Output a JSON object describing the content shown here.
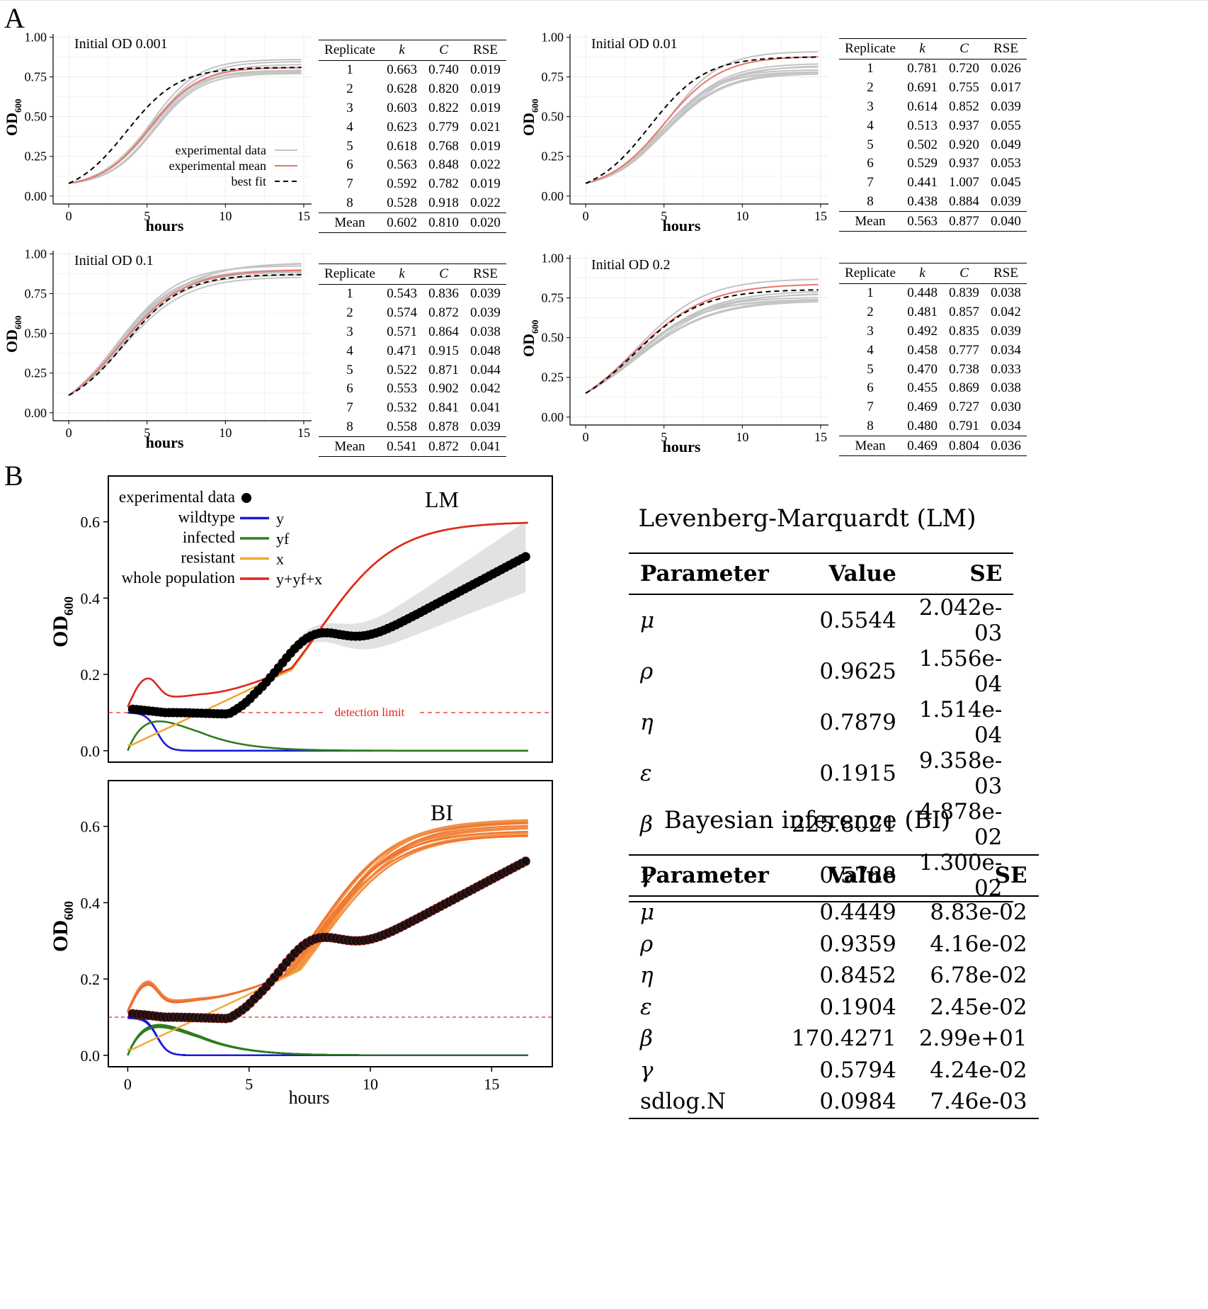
{
  "panel_a_label": "A",
  "panel_b_label": "B",
  "chart_data": [
    {
      "type": "line",
      "id": "a1",
      "title": "Initial OD 0.001",
      "xlabel": "hours",
      "ylabel": "OD",
      "ylabel_sub": "600",
      "xlim": [
        -1,
        15.5
      ],
      "ylim": [
        -0.05,
        1.02
      ],
      "xticks": [
        0,
        5,
        10,
        15
      ],
      "yticks": [
        "0.00",
        "0.25",
        "0.50",
        "0.75",
        "1.00"
      ],
      "grid": true,
      "legend_position": "bottom-right",
      "legend": [
        {
          "label": "experimental data",
          "style": "gray"
        },
        {
          "label": "experimental mean",
          "style": "red"
        },
        {
          "label": "best fit",
          "style": "dashed"
        }
      ],
      "model": {
        "N0": 0.08,
        "lag": 2.5,
        "mid": 5.2,
        "rate": 0.65,
        "C": 0.81
      },
      "fit": {
        "N0": 0.08,
        "k": 0.602,
        "C": 0.81
      },
      "spread": 0.06
    },
    {
      "type": "line",
      "id": "a2",
      "title": "Initial OD 0.01",
      "xlabel": "hours",
      "ylabel": "OD",
      "ylabel_sub": "600",
      "xlim": [
        -1,
        15.5
      ],
      "ylim": [
        -0.05,
        1.02
      ],
      "xticks": [
        0,
        5,
        10,
        15
      ],
      "yticks": [
        "0.00",
        "0.25",
        "0.50",
        "0.75",
        "1.00"
      ],
      "grid": true,
      "model": {
        "N0": 0.08,
        "lag": 2.2,
        "mid": 5.0,
        "rate": 0.55,
        "C": 0.88
      },
      "fit": {
        "N0": 0.08,
        "k": 0.563,
        "C": 0.877
      },
      "spread": 0.12
    },
    {
      "type": "line",
      "id": "a3",
      "title": "Initial OD 0.1",
      "xlabel": "hours",
      "ylabel": "OD",
      "ylabel_sub": "600",
      "xlim": [
        -1,
        15.5
      ],
      "ylim": [
        -0.05,
        1.02
      ],
      "xticks": [
        0,
        5,
        10,
        15
      ],
      "yticks": [
        "0.00",
        "0.25",
        "0.50",
        "0.75",
        "1.00"
      ],
      "grid": true,
      "model": {
        "N0": 0.11,
        "lag": 0.6,
        "mid": 3.2,
        "rate": 0.48,
        "C": 0.9
      },
      "fit": {
        "N0": 0.11,
        "k": 0.541,
        "C": 0.872
      },
      "spread": 0.05
    },
    {
      "type": "line",
      "id": "a4",
      "title": "Initial OD 0.2",
      "xlabel": "hours",
      "ylabel": "OD",
      "ylabel_sub": "600",
      "xlim": [
        -1,
        15.5
      ],
      "ylim": [
        -0.05,
        1.02
      ],
      "xticks": [
        0,
        5,
        10,
        15
      ],
      "yticks": [
        "0.00",
        "0.25",
        "0.50",
        "0.75",
        "1.00"
      ],
      "grid": true,
      "model": {
        "N0": 0.15,
        "lag": 0.3,
        "mid": 3.0,
        "rate": 0.42,
        "C": 0.84
      },
      "fit": {
        "N0": 0.15,
        "k": 0.469,
        "C": 0.804
      },
      "spread": 0.12
    },
    {
      "type": "line",
      "id": "lm",
      "title": "LM",
      "xlabel": "",
      "ylabel": "OD",
      "ylabel_sub": "600",
      "xlim": [
        -0.8,
        17.5
      ],
      "ylim": [
        -0.03,
        0.72
      ],
      "yticks": [
        "0.0",
        "0.2",
        "0.4",
        "0.6"
      ],
      "detection_limit": 0.1,
      "detection_label": "detection limit",
      "legend_position": "top-left",
      "legend": [
        {
          "label": "experimental data",
          "symbol": "",
          "color": "#000000",
          "kind": "dot"
        },
        {
          "label": "wildtype",
          "symbol": "y",
          "color": "#1a1adb",
          "kind": "line"
        },
        {
          "label": "infected",
          "symbol": "yf",
          "color": "#2e7d1e",
          "kind": "line"
        },
        {
          "label": "resistant",
          "symbol": "x",
          "color": "#f0a830",
          "kind": "line"
        },
        {
          "label": "whole population",
          "symbol": "y+yf+x",
          "color": "#e0261b",
          "kind": "line"
        }
      ],
      "model": {
        "x0": 0.01,
        "rx": 0.62,
        "tx": 7.8,
        "Kx": 0.6,
        "yamp": 0.1,
        "ydrop": 1.2,
        "yfamp": 0.077,
        "yfpeak": 1.3
      }
    },
    {
      "type": "line",
      "id": "bi",
      "title": "BI",
      "xlabel": "hours",
      "ylabel": "OD",
      "ylabel_sub": "600",
      "xlim": [
        -0.8,
        17.5
      ],
      "ylim": [
        -0.03,
        0.72
      ],
      "xticks": [
        0,
        5,
        10,
        15
      ],
      "yticks": [
        "0.0",
        "0.2",
        "0.4",
        "0.6"
      ],
      "detection_limit": 0.1,
      "model": {
        "x0": 0.01,
        "rx": 0.62,
        "tx": 7.8,
        "Kx": 0.6,
        "yamp": 0.1,
        "ydrop": 1.2,
        "yfamp": 0.077,
        "yfpeak": 1.3
      }
    }
  ],
  "replicate_tables": [
    {
      "id": "a1",
      "headers": [
        "Replicate",
        "k",
        "C",
        "RSE"
      ],
      "rows": [
        [
          "1",
          "0.663",
          "0.740",
          "0.019"
        ],
        [
          "2",
          "0.628",
          "0.820",
          "0.019"
        ],
        [
          "3",
          "0.603",
          "0.822",
          "0.019"
        ],
        [
          "4",
          "0.623",
          "0.779",
          "0.021"
        ],
        [
          "5",
          "0.618",
          "0.768",
          "0.019"
        ],
        [
          "6",
          "0.563",
          "0.848",
          "0.022"
        ],
        [
          "7",
          "0.592",
          "0.782",
          "0.019"
        ],
        [
          "8",
          "0.528",
          "0.918",
          "0.022"
        ]
      ],
      "mean": [
        "Mean",
        "0.602",
        "0.810",
        "0.020"
      ]
    },
    {
      "id": "a2",
      "headers": [
        "Replicate",
        "k",
        "C",
        "RSE"
      ],
      "rows": [
        [
          "1",
          "0.781",
          "0.720",
          "0.026"
        ],
        [
          "2",
          "0.691",
          "0.755",
          "0.017"
        ],
        [
          "3",
          "0.614",
          "0.852",
          "0.039"
        ],
        [
          "4",
          "0.513",
          "0.937",
          "0.055"
        ],
        [
          "5",
          "0.502",
          "0.920",
          "0.049"
        ],
        [
          "6",
          "0.529",
          "0.937",
          "0.053"
        ],
        [
          "7",
          "0.441",
          "1.007",
          "0.045"
        ],
        [
          "8",
          "0.438",
          "0.884",
          "0.039"
        ]
      ],
      "mean": [
        "Mean",
        "0.563",
        "0.877",
        "0.040"
      ]
    },
    {
      "id": "a3",
      "headers": [
        "Replicate",
        "k",
        "C",
        "RSE"
      ],
      "rows": [
        [
          "1",
          "0.543",
          "0.836",
          "0.039"
        ],
        [
          "2",
          "0.574",
          "0.872",
          "0.039"
        ],
        [
          "3",
          "0.571",
          "0.864",
          "0.038"
        ],
        [
          "4",
          "0.471",
          "0.915",
          "0.048"
        ],
        [
          "5",
          "0.522",
          "0.871",
          "0.044"
        ],
        [
          "6",
          "0.553",
          "0.902",
          "0.042"
        ],
        [
          "7",
          "0.532",
          "0.841",
          "0.041"
        ],
        [
          "8",
          "0.558",
          "0.878",
          "0.039"
        ]
      ],
      "mean": [
        "Mean",
        "0.541",
        "0.872",
        "0.041"
      ]
    },
    {
      "id": "a4",
      "headers": [
        "Replicate",
        "k",
        "C",
        "RSE"
      ],
      "rows": [
        [
          "1",
          "0.448",
          "0.839",
          "0.038"
        ],
        [
          "2",
          "0.481",
          "0.857",
          "0.042"
        ],
        [
          "3",
          "0.492",
          "0.835",
          "0.039"
        ],
        [
          "4",
          "0.458",
          "0.777",
          "0.034"
        ],
        [
          "5",
          "0.470",
          "0.738",
          "0.033"
        ],
        [
          "6",
          "0.455",
          "0.869",
          "0.038"
        ],
        [
          "7",
          "0.469",
          "0.727",
          "0.030"
        ],
        [
          "8",
          "0.480",
          "0.791",
          "0.034"
        ]
      ],
      "mean": [
        "Mean",
        "0.469",
        "0.804",
        "0.036"
      ]
    }
  ],
  "parameter_tables": [
    {
      "id": "lm",
      "title": "Levenberg-Marquardt (LM)",
      "headers": [
        "Parameter",
        "Value",
        "SE"
      ],
      "rows": [
        [
          "μ",
          "0.5544",
          "2.042e-03"
        ],
        [
          "ρ",
          "0.9625",
          "1.556e-04"
        ],
        [
          "η",
          "0.7879",
          "1.514e-04"
        ],
        [
          "ε",
          "0.1915",
          "9.358e-03"
        ],
        [
          "β",
          "225.8021",
          "4.878e-02"
        ],
        [
          "γ",
          "0.5788",
          "1.300e-02"
        ]
      ]
    },
    {
      "id": "bi",
      "title": "Bayesian inference (BI)",
      "headers": [
        "Parameter",
        "Value",
        "SE"
      ],
      "rows": [
        [
          "μ",
          "0.4449",
          "8.83e-02"
        ],
        [
          "ρ",
          "0.9359",
          "4.16e-02"
        ],
        [
          "η",
          "0.8452",
          "6.78e-02"
        ],
        [
          "ε",
          "0.1904",
          "2.45e-02"
        ],
        [
          "β",
          "170.4271",
          "2.99e+01"
        ],
        [
          "γ",
          "0.5794",
          "4.24e-02"
        ],
        [
          "sdlog.N",
          "0.0984",
          "7.46e-03"
        ]
      ]
    }
  ]
}
